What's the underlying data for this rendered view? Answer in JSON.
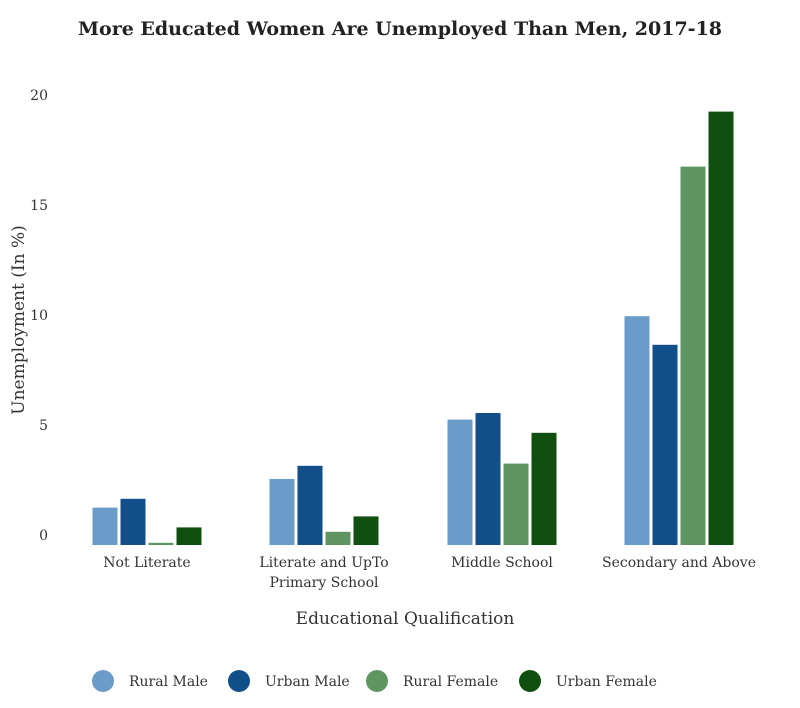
{
  "chart_data": {
    "type": "bar",
    "title": "More Educated Women Are Unemployed Than Men, 2017-18",
    "xlabel": "Educational Qualification",
    "ylabel": "Unemployment (In %)",
    "ylim": [
      0,
      20
    ],
    "yticks": [
      0,
      5,
      10,
      15,
      20
    ],
    "grid": false,
    "legend_position": "bottom",
    "categories": [
      [
        "Not Literate"
      ],
      [
        "Literate and UpTo",
        "Primary School"
      ],
      [
        "Middle School"
      ],
      [
        "Secondary and Above"
      ]
    ],
    "series": [
      {
        "name": "Rural Male",
        "color": "#6a9bc9",
        "values": [
          1.7,
          3.0,
          5.7,
          10.4
        ]
      },
      {
        "name": "Urban Male",
        "color": "#124e8a",
        "values": [
          2.1,
          3.6,
          6.0,
          9.1
        ]
      },
      {
        "name": "Rural Female",
        "color": "#5e9561",
        "values": [
          0.1,
          0.6,
          3.7,
          17.2
        ]
      },
      {
        "name": "Urban Female",
        "color": "#0f4f10",
        "values": [
          0.8,
          1.3,
          5.1,
          19.7
        ]
      }
    ]
  }
}
